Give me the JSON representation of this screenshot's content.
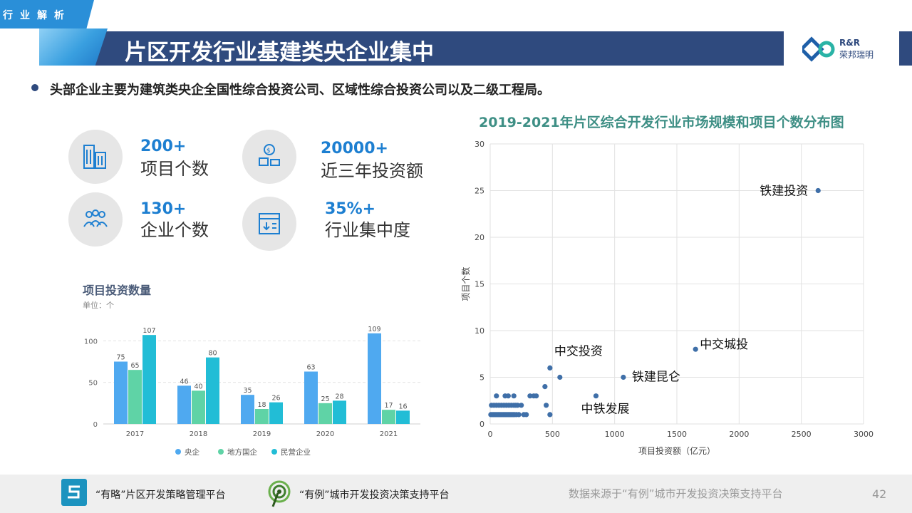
{
  "header": {
    "section_tag": "行业解析",
    "title": "片区开发行业基建类央企业集中",
    "logo_en": "R&R",
    "logo_cn": "荣邦瑞明"
  },
  "bullet": "头部企业主要为建筑类央企全国性综合投资公司、区域性综合投资公司以及二级工程局。",
  "stats": [
    {
      "value": "200+",
      "label": "项目个数",
      "icon": "buildings-icon"
    },
    {
      "value": "20000+",
      "label": "近三年投资额",
      "icon": "investment-icon"
    },
    {
      "value": "130+",
      "label": "企业个数",
      "icon": "people-icon"
    },
    {
      "value": "35%+",
      "label": "行业集中度",
      "icon": "concentration-icon"
    }
  ],
  "bar_chart_title": "项目投资数量",
  "bar_chart_unit": "单位：个",
  "scatter_title": "2019-2021年片区综合开发行业市场规模和项目个数分布图",
  "colors": {
    "title_bar": "#2f4a7e",
    "accent_blue": "#1d7fd1",
    "series_central": "#4fa9f0",
    "series_local": "#5fd3a6",
    "series_private": "#22bdd6",
    "scatter_point": "#3f6fa8"
  },
  "chart_data": [
    {
      "type": "bar",
      "categories": [
        "2017",
        "2018",
        "2019",
        "2020",
        "2021"
      ],
      "series": [
        {
          "name": "央企",
          "values": [
            75,
            46,
            35,
            63,
            109
          ]
        },
        {
          "name": "地方国企",
          "values": [
            65,
            40,
            18,
            25,
            17
          ]
        },
        {
          "name": "民营企业",
          "values": [
            107,
            80,
            26,
            28,
            16
          ]
        }
      ],
      "ylim": [
        0,
        120
      ],
      "yticks": [
        0,
        50,
        100
      ],
      "legend": "bottom",
      "grid": true
    },
    {
      "type": "scatter",
      "xlabel": "项目投资额（亿元）",
      "ylabel": "项目个数",
      "xlim": [
        0,
        3000
      ],
      "ylim": [
        0,
        30
      ],
      "xticks": [
        0,
        500,
        1000,
        1500,
        2000,
        2500,
        3000
      ],
      "yticks": [
        0,
        5,
        10,
        15,
        20,
        25,
        30
      ],
      "grid": true,
      "points": [
        {
          "x": 2635,
          "y": 25,
          "label": "铁建投资",
          "label_pos": "left"
        },
        {
          "x": 1650,
          "y": 8,
          "label": "中交城投",
          "label_pos": "right"
        },
        {
          "x": 1070,
          "y": 5,
          "label": "铁建昆仑",
          "label_pos": "right-below"
        },
        {
          "x": 480,
          "y": 6,
          "label": "中交投资",
          "label_pos": "above-right"
        },
        {
          "x": 850,
          "y": 3,
          "label": "中铁发展",
          "label_pos": "below-left"
        },
        {
          "x": 560,
          "y": 5
        },
        {
          "x": 440,
          "y": 4
        },
        {
          "x": 450,
          "y": 2
        },
        {
          "x": 480,
          "y": 1
        },
        {
          "x": 320,
          "y": 3
        },
        {
          "x": 350,
          "y": 3
        },
        {
          "x": 370,
          "y": 3
        },
        {
          "x": 250,
          "y": 2
        },
        {
          "x": 270,
          "y": 1
        },
        {
          "x": 290,
          "y": 1
        },
        {
          "x": 5,
          "y": 1
        },
        {
          "x": 15,
          "y": 1
        },
        {
          "x": 25,
          "y": 1
        },
        {
          "x": 35,
          "y": 1
        },
        {
          "x": 45,
          "y": 1
        },
        {
          "x": 55,
          "y": 1
        },
        {
          "x": 65,
          "y": 1
        },
        {
          "x": 75,
          "y": 1
        },
        {
          "x": 85,
          "y": 1
        },
        {
          "x": 95,
          "y": 1
        },
        {
          "x": 105,
          "y": 1
        },
        {
          "x": 115,
          "y": 1
        },
        {
          "x": 125,
          "y": 1
        },
        {
          "x": 135,
          "y": 1
        },
        {
          "x": 145,
          "y": 1
        },
        {
          "x": 155,
          "y": 1
        },
        {
          "x": 165,
          "y": 1
        },
        {
          "x": 175,
          "y": 1
        },
        {
          "x": 185,
          "y": 1
        },
        {
          "x": 195,
          "y": 1
        },
        {
          "x": 210,
          "y": 1
        },
        {
          "x": 230,
          "y": 1
        },
        {
          "x": 10,
          "y": 2
        },
        {
          "x": 30,
          "y": 2
        },
        {
          "x": 50,
          "y": 2
        },
        {
          "x": 70,
          "y": 2
        },
        {
          "x": 90,
          "y": 2
        },
        {
          "x": 110,
          "y": 2
        },
        {
          "x": 130,
          "y": 2
        },
        {
          "x": 150,
          "y": 2
        },
        {
          "x": 170,
          "y": 2
        },
        {
          "x": 190,
          "y": 2
        },
        {
          "x": 205,
          "y": 2
        },
        {
          "x": 220,
          "y": 2
        },
        {
          "x": 50,
          "y": 3
        },
        {
          "x": 120,
          "y": 3
        },
        {
          "x": 145,
          "y": 3
        },
        {
          "x": 190,
          "y": 3
        }
      ]
    }
  ],
  "footer": {
    "platform1": "“有略”片区开发策略管理平台",
    "platform2": "“有例”城市开发投资决策支持平台",
    "source": "数据来源于“有例”城市开发投资决策支持平台",
    "page": "42"
  }
}
